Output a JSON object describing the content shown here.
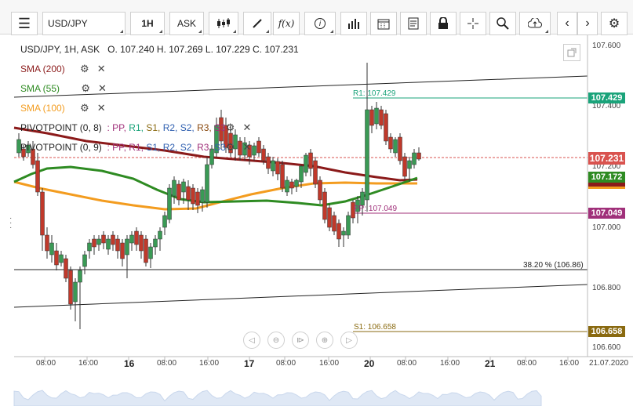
{
  "toolbar": {
    "symbol": "USD/JPY",
    "timeframe": "1H",
    "price_type": "ASK",
    "fx_label": "f(x)"
  },
  "legend": {
    "pair_info": "USD/JPY, 1H, ASK",
    "ohlc": "O. 107.240 H. 107.269 L. 107.229 C. 107.231"
  },
  "indicators": [
    {
      "label": "SMA (200)",
      "color": "#8b1a1a"
    },
    {
      "label": "SMA (55)",
      "color": "#2e8b22"
    },
    {
      "label": "SMA (100)",
      "color": "#f39c1f"
    }
  ],
  "pivots": [
    {
      "label": "PIVOTPOINT (0, 8)",
      "levels": [
        ": PP,",
        "R1,",
        "S1,",
        "R2,",
        "S2,",
        "R3,",
        "S3"
      ]
    },
    {
      "label": "PIVOTPOINT (0, 9)",
      "levels": [
        ": PP,",
        "R1,",
        "S1,",
        "R2,",
        "S2,",
        "R3,",
        "S3"
      ]
    }
  ],
  "level_labels": {
    "r1": "R1: 107.429",
    "pp": "PP: 107.049",
    "s1": "S1: 106.658",
    "fib": "38.20 % (106.86)"
  },
  "price_axis": {
    "ticks": [
      "107.600",
      "107.400",
      "107.200",
      "107.000",
      "106.800",
      "106.600"
    ],
    "tags": {
      "r1": "107.429",
      "current": "107.231",
      "sma55": "107.172",
      "pp": "107.049",
      "s1": "106.658"
    }
  },
  "time_axis": {
    "labels": [
      "08:00",
      "16:00",
      "16",
      "08:00",
      "16:00",
      "17",
      "08:00",
      "16:00",
      "20",
      "08:00",
      "16:00",
      "21",
      "08:00",
      "16:00",
      "21.07.2020"
    ]
  },
  "colors": {
    "sma200": "#8b1a1a",
    "sma55": "#2e8b22",
    "sma100": "#f39c1f",
    "r1": "#1aa37a",
    "pp": "#a0307a",
    "s1": "#8a6a10",
    "current": "#d9534f",
    "bull": "#3a9a55",
    "bear": "#c0392b"
  }
}
